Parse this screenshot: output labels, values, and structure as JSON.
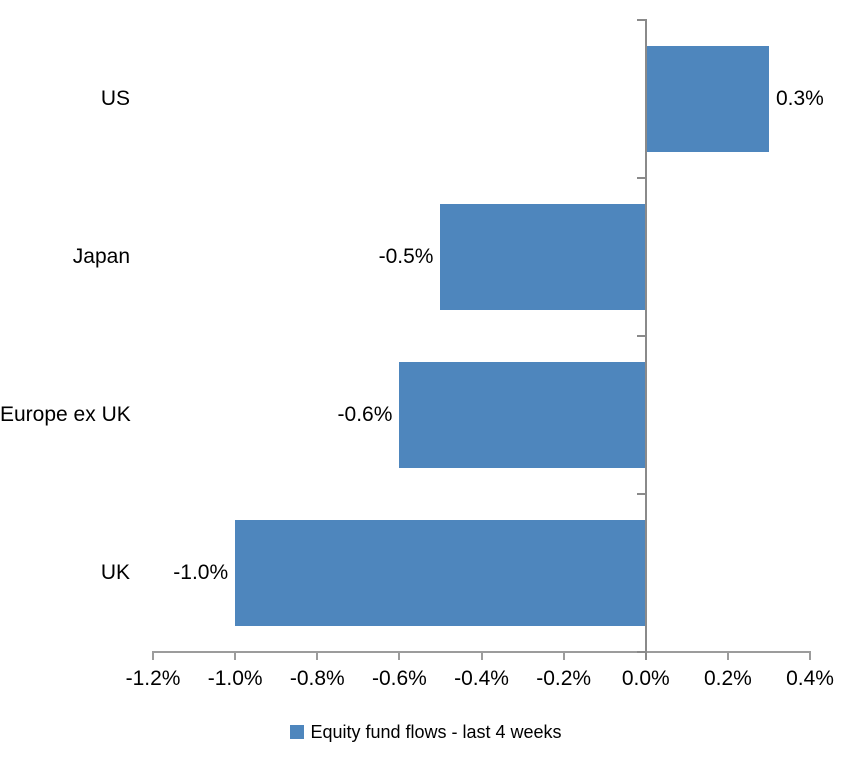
{
  "chart_data": {
    "type": "bar",
    "orientation": "horizontal",
    "title": "",
    "categories": [
      "US",
      "Japan",
      "Europe ex UK",
      "UK"
    ],
    "values": [
      0.3,
      -0.5,
      -0.6,
      -1.0
    ],
    "data_labels": [
      "0.3%",
      "-0.5%",
      "-0.6%",
      "-1.0%"
    ],
    "series_name": "Equity fund flows - last 4 weeks",
    "xlim": [
      -1.2,
      0.4
    ],
    "x_tick_values": [
      -1.2,
      -1.0,
      -0.8,
      -0.6,
      -0.4,
      -0.2,
      0.0,
      0.2,
      0.4
    ],
    "x_tick_labels": [
      "-1.2%",
      "-1.0%",
      "-0.8%",
      "-0.6%",
      "-0.4%",
      "-0.2%",
      "0.0%",
      "0.2%",
      "0.4%"
    ],
    "grid": false,
    "legend_position": "bottom",
    "colors": {
      "bar": "#4e86bd",
      "axis": "#9c9c9c",
      "zero_line": "#8a8a8a",
      "text": "#000000",
      "background": "#ffffff"
    }
  }
}
